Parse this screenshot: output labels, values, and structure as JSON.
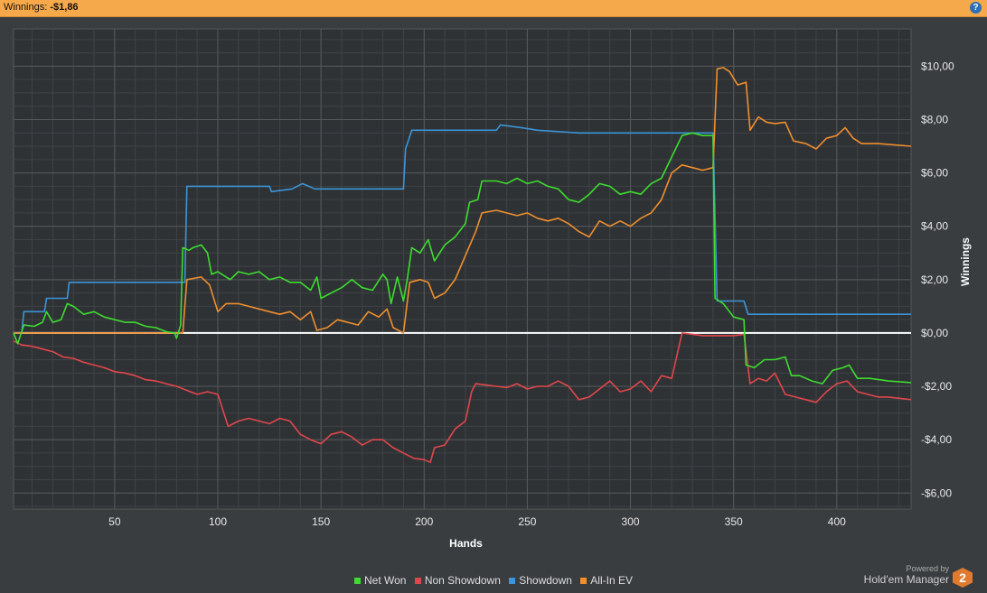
{
  "header": {
    "label": "Winnings:",
    "value": "-$1,86",
    "help_icon": "help-icon"
  },
  "chart_data": {
    "type": "line",
    "xlabel": "Hands",
    "ylabel": "Winnings",
    "xlim": [
      1,
      436
    ],
    "ylim": [
      -6.6,
      11.4
    ],
    "x_ticks": [
      50,
      100,
      150,
      200,
      250,
      300,
      350,
      400
    ],
    "x_tick_labels": [
      "50",
      "100",
      "150",
      "200",
      "250",
      "300",
      "350",
      "400"
    ],
    "y_ticks": [
      -6,
      -4,
      -2,
      0,
      2,
      4,
      6,
      8,
      10
    ],
    "y_tick_labels": [
      "-$6,00",
      "-$4,00",
      "-$2,00",
      "$0,00",
      "$2,00",
      "$4,00",
      "$6,00",
      "$8,00",
      "$10,00"
    ],
    "legend_position": "bottom",
    "series": [
      {
        "name": "Net Won",
        "color": "#3ddc2f",
        "points": [
          [
            1,
            0
          ],
          [
            3,
            -0.4
          ],
          [
            6,
            0.3
          ],
          [
            11,
            0.25
          ],
          [
            15,
            0.4
          ],
          [
            17,
            0.8
          ],
          [
            20,
            0.4
          ],
          [
            24,
            0.5
          ],
          [
            27,
            1.1
          ],
          [
            30,
            1.0
          ],
          [
            35,
            0.7
          ],
          [
            40,
            0.8
          ],
          [
            45,
            0.6
          ],
          [
            50,
            0.5
          ],
          [
            55,
            0.4
          ],
          [
            60,
            0.4
          ],
          [
            65,
            0.25
          ],
          [
            70,
            0.2
          ],
          [
            75,
            0.05
          ],
          [
            79,
            0
          ],
          [
            80,
            -0.2
          ],
          [
            82,
            0.3
          ],
          [
            83,
            3.2
          ],
          [
            86,
            3.1
          ],
          [
            88,
            3.2
          ],
          [
            92,
            3.3
          ],
          [
            95,
            3.0
          ],
          [
            97,
            2.2
          ],
          [
            100,
            2.3
          ],
          [
            106,
            2.0
          ],
          [
            110,
            2.3
          ],
          [
            115,
            2.2
          ],
          [
            120,
            2.3
          ],
          [
            125,
            2.0
          ],
          [
            130,
            2.1
          ],
          [
            135,
            1.9
          ],
          [
            140,
            1.9
          ],
          [
            145,
            1.6
          ],
          [
            148,
            2.1
          ],
          [
            150,
            1.3
          ],
          [
            155,
            1.5
          ],
          [
            160,
            1.7
          ],
          [
            165,
            2.0
          ],
          [
            170,
            1.7
          ],
          [
            175,
            1.6
          ],
          [
            180,
            2.2
          ],
          [
            182,
            2.0
          ],
          [
            184,
            1.1
          ],
          [
            187,
            2.1
          ],
          [
            190,
            1.2
          ],
          [
            192,
            2.1
          ],
          [
            194,
            3.2
          ],
          [
            198,
            3.0
          ],
          [
            202,
            3.5
          ],
          [
            205,
            2.7
          ],
          [
            210,
            3.3
          ],
          [
            215,
            3.6
          ],
          [
            220,
            4.1
          ],
          [
            222,
            4.9
          ],
          [
            226,
            5.0
          ],
          [
            228,
            5.7
          ],
          [
            235,
            5.7
          ],
          [
            240,
            5.6
          ],
          [
            245,
            5.8
          ],
          [
            250,
            5.6
          ],
          [
            255,
            5.7
          ],
          [
            260,
            5.5
          ],
          [
            265,
            5.4
          ],
          [
            270,
            5.0
          ],
          [
            275,
            4.9
          ],
          [
            280,
            5.2
          ],
          [
            285,
            5.6
          ],
          [
            290,
            5.5
          ],
          [
            295,
            5.2
          ],
          [
            300,
            5.3
          ],
          [
            305,
            5.2
          ],
          [
            310,
            5.6
          ],
          [
            315,
            5.8
          ],
          [
            320,
            6.6
          ],
          [
            325,
            7.4
          ],
          [
            330,
            7.5
          ],
          [
            335,
            7.4
          ],
          [
            340,
            7.4
          ],
          [
            341,
            1.3
          ],
          [
            345,
            1.1
          ],
          [
            350,
            0.6
          ],
          [
            355,
            0.5
          ],
          [
            356,
            -1.2
          ],
          [
            360,
            -1.3
          ],
          [
            365,
            -1.0
          ],
          [
            370,
            -1.0
          ],
          [
            375,
            -0.9
          ],
          [
            378,
            -1.6
          ],
          [
            382,
            -1.6
          ],
          [
            388,
            -1.8
          ],
          [
            393,
            -1.9
          ],
          [
            398,
            -1.4
          ],
          [
            403,
            -1.3
          ],
          [
            406,
            -1.2
          ],
          [
            410,
            -1.7
          ],
          [
            416,
            -1.7
          ],
          [
            425,
            -1.8
          ],
          [
            436,
            -1.86
          ]
        ]
      },
      {
        "name": "Non Showdown",
        "color": "#e0474c",
        "points": [
          [
            1,
            -0.3
          ],
          [
            5,
            -0.45
          ],
          [
            10,
            -0.5
          ],
          [
            15,
            -0.6
          ],
          [
            20,
            -0.7
          ],
          [
            25,
            -0.9
          ],
          [
            30,
            -0.95
          ],
          [
            35,
            -1.1
          ],
          [
            40,
            -1.2
          ],
          [
            45,
            -1.3
          ],
          [
            50,
            -1.45
          ],
          [
            55,
            -1.5
          ],
          [
            60,
            -1.6
          ],
          [
            65,
            -1.75
          ],
          [
            70,
            -1.8
          ],
          [
            75,
            -1.9
          ],
          [
            80,
            -2.0
          ],
          [
            85,
            -2.15
          ],
          [
            90,
            -2.3
          ],
          [
            95,
            -2.2
          ],
          [
            100,
            -2.3
          ],
          [
            105,
            -3.5
          ],
          [
            110,
            -3.3
          ],
          [
            115,
            -3.2
          ],
          [
            120,
            -3.3
          ],
          [
            125,
            -3.4
          ],
          [
            130,
            -3.2
          ],
          [
            135,
            -3.3
          ],
          [
            140,
            -3.8
          ],
          [
            145,
            -4.0
          ],
          [
            150,
            -4.15
          ],
          [
            155,
            -3.8
          ],
          [
            160,
            -3.7
          ],
          [
            165,
            -3.9
          ],
          [
            170,
            -4.2
          ],
          [
            175,
            -4.0
          ],
          [
            180,
            -4.0
          ],
          [
            185,
            -4.3
          ],
          [
            190,
            -4.5
          ],
          [
            195,
            -4.7
          ],
          [
            200,
            -4.75
          ],
          [
            203,
            -4.85
          ],
          [
            205,
            -4.3
          ],
          [
            210,
            -4.2
          ],
          [
            215,
            -3.6
          ],
          [
            220,
            -3.3
          ],
          [
            223,
            -2.2
          ],
          [
            225,
            -1.9
          ],
          [
            230,
            -1.95
          ],
          [
            235,
            -2.0
          ],
          [
            240,
            -2.05
          ],
          [
            245,
            -1.9
          ],
          [
            250,
            -2.1
          ],
          [
            255,
            -2.0
          ],
          [
            260,
            -2.0
          ],
          [
            265,
            -1.8
          ],
          [
            270,
            -2.0
          ],
          [
            275,
            -2.5
          ],
          [
            280,
            -2.4
          ],
          [
            285,
            -2.1
          ],
          [
            290,
            -1.8
          ],
          [
            295,
            -2.2
          ],
          [
            300,
            -2.1
          ],
          [
            305,
            -1.8
          ],
          [
            310,
            -2.2
          ],
          [
            315,
            -1.6
          ],
          [
            320,
            -1.7
          ],
          [
            325,
            0
          ],
          [
            330,
            -0.05
          ],
          [
            335,
            -0.1
          ],
          [
            340,
            -0.1
          ],
          [
            345,
            -0.1
          ],
          [
            350,
            -0.1
          ],
          [
            355,
            -0.05
          ],
          [
            358,
            -1.9
          ],
          [
            362,
            -1.7
          ],
          [
            366,
            -1.8
          ],
          [
            370,
            -1.5
          ],
          [
            375,
            -2.3
          ],
          [
            380,
            -2.4
          ],
          [
            385,
            -2.5
          ],
          [
            390,
            -2.6
          ],
          [
            395,
            -2.2
          ],
          [
            400,
            -1.9
          ],
          [
            405,
            -1.8
          ],
          [
            410,
            -2.2
          ],
          [
            415,
            -2.3
          ],
          [
            420,
            -2.4
          ],
          [
            425,
            -2.4
          ],
          [
            436,
            -2.5
          ]
        ]
      },
      {
        "name": "Showdown",
        "color": "#3b95d8",
        "points": [
          [
            1,
            0
          ],
          [
            5,
            0
          ],
          [
            6,
            0.8
          ],
          [
            16,
            0.8
          ],
          [
            17,
            1.3
          ],
          [
            27,
            1.3
          ],
          [
            28,
            1.9
          ],
          [
            84,
            1.9
          ],
          [
            85,
            5.5
          ],
          [
            125,
            5.5
          ],
          [
            126,
            5.3
          ],
          [
            136,
            5.4
          ],
          [
            141,
            5.6
          ],
          [
            147,
            5.4
          ],
          [
            190,
            5.4
          ],
          [
            191,
            6.9
          ],
          [
            194,
            7.6
          ],
          [
            235,
            7.6
          ],
          [
            237,
            7.8
          ],
          [
            247,
            7.7
          ],
          [
            255,
            7.6
          ],
          [
            275,
            7.5
          ],
          [
            340,
            7.5
          ],
          [
            342,
            1.2
          ],
          [
            355,
            1.2
          ],
          [
            357,
            0.7
          ],
          [
            390,
            0.7
          ],
          [
            400,
            0.7
          ],
          [
            436,
            0.7
          ]
        ]
      },
      {
        "name": "All-In EV",
        "color": "#ef8f2e",
        "points": [
          [
            1,
            0
          ],
          [
            83,
            0
          ],
          [
            85,
            2.0
          ],
          [
            92,
            2.1
          ],
          [
            96,
            1.8
          ],
          [
            100,
            0.8
          ],
          [
            104,
            1.1
          ],
          [
            110,
            1.1
          ],
          [
            115,
            1.0
          ],
          [
            120,
            0.9
          ],
          [
            125,
            0.8
          ],
          [
            130,
            0.7
          ],
          [
            135,
            0.8
          ],
          [
            140,
            0.5
          ],
          [
            145,
            0.8
          ],
          [
            148,
            0.1
          ],
          [
            153,
            0.2
          ],
          [
            158,
            0.5
          ],
          [
            163,
            0.4
          ],
          [
            168,
            0.3
          ],
          [
            173,
            0.8
          ],
          [
            178,
            0.6
          ],
          [
            182,
            0.9
          ],
          [
            185,
            0.2
          ],
          [
            190,
            0.0
          ],
          [
            193,
            1.9
          ],
          [
            198,
            2.0
          ],
          [
            202,
            1.9
          ],
          [
            205,
            1.3
          ],
          [
            210,
            1.5
          ],
          [
            215,
            2.0
          ],
          [
            220,
            2.9
          ],
          [
            225,
            3.8
          ],
          [
            228,
            4.5
          ],
          [
            235,
            4.6
          ],
          [
            240,
            4.5
          ],
          [
            245,
            4.4
          ],
          [
            250,
            4.5
          ],
          [
            255,
            4.3
          ],
          [
            260,
            4.2
          ],
          [
            265,
            4.3
          ],
          [
            270,
            4.1
          ],
          [
            275,
            3.8
          ],
          [
            280,
            3.6
          ],
          [
            285,
            4.2
          ],
          [
            290,
            4.0
          ],
          [
            295,
            4.2
          ],
          [
            300,
            4.0
          ],
          [
            305,
            4.3
          ],
          [
            310,
            4.5
          ],
          [
            315,
            5.0
          ],
          [
            320,
            6.0
          ],
          [
            325,
            6.3
          ],
          [
            330,
            6.2
          ],
          [
            335,
            6.1
          ],
          [
            340,
            6.2
          ],
          [
            342,
            9.9
          ],
          [
            345,
            9.95
          ],
          [
            348,
            9.8
          ],
          [
            352,
            9.3
          ],
          [
            356,
            9.4
          ],
          [
            358,
            7.6
          ],
          [
            362,
            8.1
          ],
          [
            366,
            7.9
          ],
          [
            370,
            7.85
          ],
          [
            375,
            7.9
          ],
          [
            379,
            7.2
          ],
          [
            385,
            7.1
          ],
          [
            390,
            6.9
          ],
          [
            395,
            7.3
          ],
          [
            400,
            7.4
          ],
          [
            404,
            7.7
          ],
          [
            408,
            7.3
          ],
          [
            412,
            7.1
          ],
          [
            420,
            7.1
          ],
          [
            436,
            7.0
          ]
        ]
      }
    ]
  },
  "brand": {
    "powered_by": "Powered by",
    "name": "Hold'em Manager",
    "logo_text": "2"
  }
}
